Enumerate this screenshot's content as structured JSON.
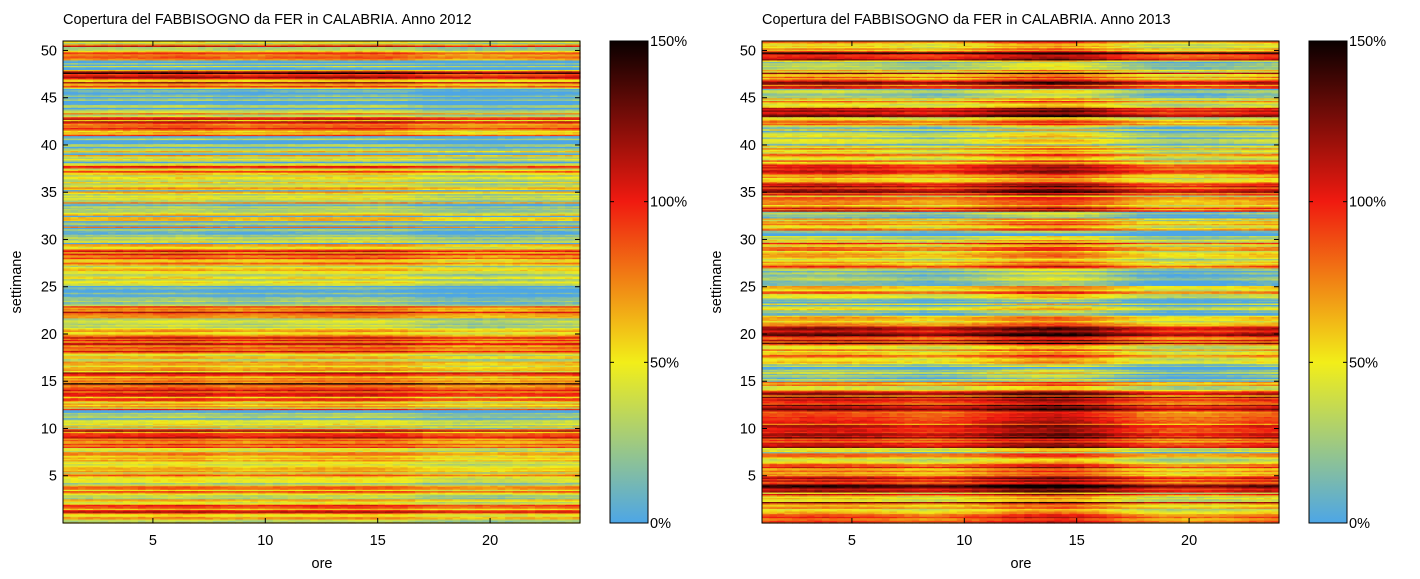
{
  "chart_data": [
    {
      "type": "heatmap",
      "title": "Copertura del FABBISOGNO da FER in CALABRIA. Anno 2012",
      "xlabel": "ore",
      "ylabel": "settimane",
      "xlim": [
        1,
        24
      ],
      "ylim": [
        0,
        51
      ],
      "xticks": [
        "5",
        "10",
        "15",
        "20"
      ],
      "yticks": [
        "5",
        "10",
        "15",
        "20",
        "25",
        "30",
        "35",
        "40",
        "45",
        "50"
      ],
      "x_hours": 24,
      "y_weeks": 51,
      "rows_per_week": 7,
      "colorbar": {
        "range_percent": [
          0,
          150
        ],
        "ticks": [
          "0%",
          "50%",
          "100%",
          "150%"
        ],
        "stops": [
          "#4da6e6",
          "#f2ee19",
          "#f01a10",
          "#0a0000"
        ]
      },
      "intensity_profile_by_hour_percent": [
        48,
        48,
        50,
        50,
        52,
        54,
        52,
        47,
        46,
        48,
        50,
        52,
        52,
        53,
        52,
        50,
        42,
        40,
        38,
        38,
        40,
        42,
        44,
        46
      ],
      "hot_weeks": [
        2,
        4,
        9,
        10,
        14,
        15,
        16,
        19,
        20,
        23,
        29,
        38,
        42,
        43,
        47,
        48,
        50
      ],
      "cool_weeks": [
        12,
        24,
        25,
        31,
        32,
        34,
        40,
        41,
        44,
        45,
        46,
        49
      ]
    },
    {
      "type": "heatmap",
      "title": "Copertura del FABBISOGNO da FER in CALABRIA. Anno 2013",
      "xlabel": "ore",
      "ylabel": "settimane",
      "xlim": [
        1,
        24
      ],
      "ylim": [
        0,
        51
      ],
      "xticks": [
        "5",
        "10",
        "15",
        "20"
      ],
      "yticks": [
        "5",
        "10",
        "15",
        "20",
        "25",
        "30",
        "35",
        "40",
        "45",
        "50"
      ],
      "x_hours": 24,
      "y_weeks": 51,
      "rows_per_week": 7,
      "colorbar": {
        "range_percent": [
          0,
          150
        ],
        "ticks": [
          "0%",
          "50%",
          "100%",
          "150%"
        ],
        "stops": [
          "#4da6e6",
          "#f2ee19",
          "#f01a10",
          "#0a0000"
        ]
      },
      "intensity_profile_by_hour_percent": [
        62,
        64,
        66,
        66,
        64,
        62,
        58,
        54,
        56,
        62,
        68,
        74,
        78,
        80,
        76,
        68,
        58,
        50,
        46,
        46,
        48,
        52,
        56,
        58
      ],
      "hot_weeks": [
        1,
        4,
        5,
        9,
        10,
        11,
        12,
        13,
        14,
        20,
        21,
        36,
        38,
        44,
        47,
        50
      ],
      "cool_weeks": [
        16,
        17,
        23,
        24,
        26,
        27,
        31,
        33,
        41,
        42,
        46,
        49
      ]
    }
  ]
}
